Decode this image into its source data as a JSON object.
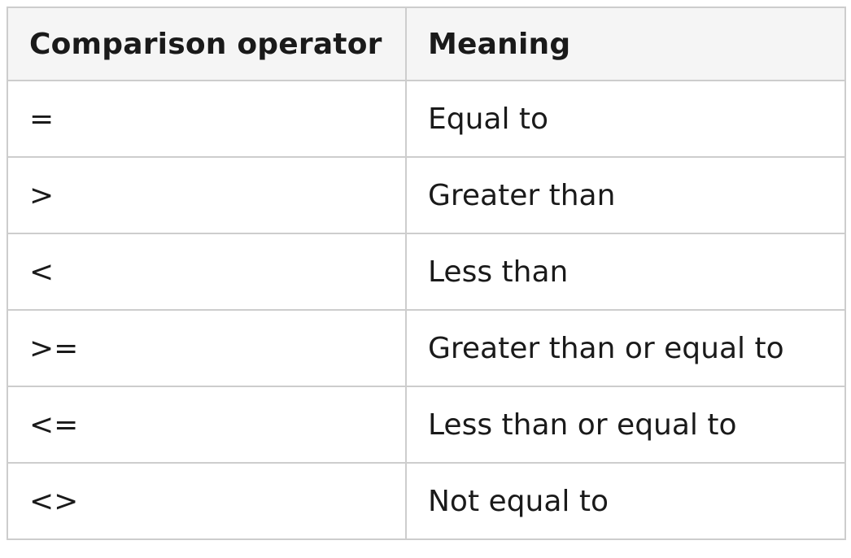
{
  "table": {
    "name": "comparison-operators",
    "columns": [
      "Comparison operator",
      "Meaning"
    ],
    "rows": [
      {
        "operator": "=",
        "meaning": "Equal to"
      },
      {
        "operator": ">",
        "meaning": "Greater than"
      },
      {
        "operator": "<",
        "meaning": "Less than"
      },
      {
        "operator": ">=",
        "meaning": "Greater than or equal to"
      },
      {
        "operator": "<=",
        "meaning": "Less than or equal to"
      },
      {
        "operator": "<>",
        "meaning": "Not equal to"
      }
    ]
  },
  "colors": {
    "header_background": "#f5f5f5",
    "border": "#cdcdcd",
    "text": "#1a1a1a",
    "page_background": "#ffffff"
  }
}
